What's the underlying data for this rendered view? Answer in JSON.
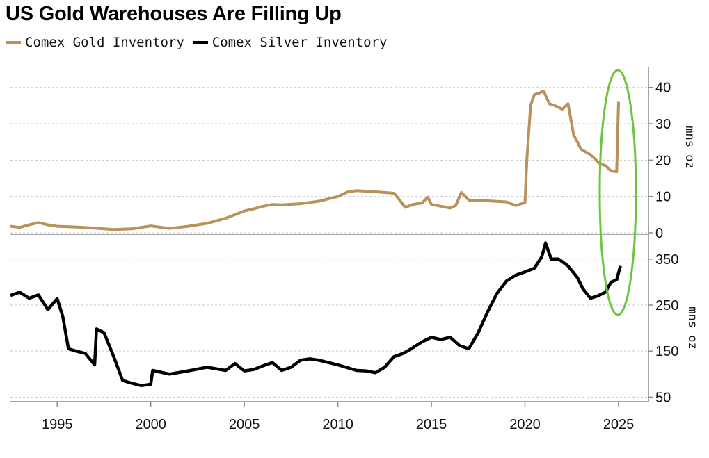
{
  "title": "US Gold Warehouses Are Filling Up",
  "legend": [
    {
      "label": "Comex Gold Inventory",
      "color": "#b8915b"
    },
    {
      "label": "Comex Silver Inventory",
      "color": "#000000"
    }
  ],
  "chart_data": [
    {
      "type": "line",
      "series": [
        {
          "name": "Comex Gold Inventory",
          "color": "#b8915b",
          "x": [
            1992.5,
            1993,
            1993.5,
            1994,
            1994.5,
            1995,
            1996,
            1997,
            1998,
            1999,
            2000,
            2001,
            2002,
            2003,
            2004,
            2005,
            2005.5,
            2006,
            2006.5,
            2007,
            2008,
            2009,
            2010,
            2010.5,
            2011,
            2012,
            2013,
            2013.3,
            2013.6,
            2014,
            2014.5,
            2014.8,
            2015,
            2015.5,
            2016,
            2016.3,
            2016.6,
            2017,
            2018,
            2019,
            2019.5,
            2020,
            2020.1,
            2020.3,
            2020.5,
            2020.8,
            2021,
            2021.3,
            2021.6,
            2022,
            2022.3,
            2022.6,
            2023,
            2023.5,
            2024,
            2024.3,
            2024.6,
            2024.9,
            2025
          ],
          "y": [
            1.8,
            1.5,
            2.2,
            2.8,
            2.2,
            1.8,
            1.6,
            1.3,
            0.9,
            1.1,
            1.9,
            1.2,
            1.8,
            2.6,
            4.0,
            6.0,
            6.6,
            7.3,
            7.8,
            7.7,
            8.0,
            8.7,
            10.0,
            11.2,
            11.6,
            11.3,
            10.9,
            9.0,
            7.0,
            7.8,
            8.2,
            9.8,
            7.8,
            7.3,
            6.8,
            7.5,
            11.1,
            9.0,
            8.8,
            8.5,
            7.5,
            8.3,
            20.0,
            35.0,
            38.0,
            38.5,
            39.0,
            35.5,
            35.0,
            34.0,
            35.5,
            27.0,
            23.0,
            21.5,
            19.0,
            18.5,
            17.0,
            16.8,
            36.0
          ]
        }
      ],
      "ylim": [
        0,
        43
      ],
      "yticks": [
        0,
        10,
        20,
        30,
        40
      ],
      "yunit": "mns oz",
      "yaxis_side": "right"
    },
    {
      "type": "line",
      "series": [
        {
          "name": "Comex Silver Inventory",
          "color": "#000000",
          "x": [
            1992.5,
            1993,
            1993.5,
            1994,
            1994.5,
            1995,
            1995.3,
            1995.6,
            1996,
            1996.5,
            1997,
            1997.1,
            1997.5,
            1998,
            1998.5,
            1999,
            1999.5,
            2000,
            2000.1,
            2001,
            2002,
            2003,
            2004,
            2004.5,
            2005,
            2005.5,
            2006,
            2006.5,
            2007,
            2007.5,
            2008,
            2008.5,
            2009,
            2010,
            2011,
            2011.5,
            2012,
            2012.5,
            2013,
            2013.5,
            2014,
            2014.5,
            2015,
            2015.5,
            2016,
            2016.5,
            2017,
            2017.5,
            2018,
            2018.5,
            2019,
            2019.5,
            2020,
            2020.5,
            2020.9,
            2021.1,
            2021.4,
            2021.8,
            2022.3,
            2022.8,
            2023.1,
            2023.5,
            2023.9,
            2024.3,
            2024.6,
            2024.9,
            2025.1
          ],
          "y": [
            271,
            278,
            265,
            272,
            240,
            264,
            225,
            155,
            150,
            145,
            120,
            198,
            190,
            140,
            86,
            80,
            75,
            78,
            108,
            100,
            107,
            115,
            108,
            123,
            107,
            110,
            118,
            125,
            108,
            115,
            130,
            133,
            130,
            120,
            108,
            107,
            103,
            115,
            138,
            145,
            157,
            170,
            180,
            175,
            180,
            162,
            155,
            190,
            235,
            275,
            302,
            315,
            322,
            330,
            355,
            385,
            350,
            350,
            335,
            310,
            285,
            265,
            270,
            278,
            300,
            305,
            335
          ]
        }
      ],
      "ylim": [
        40,
        395
      ],
      "yticks": [
        50,
        150,
        250,
        350
      ],
      "yunit": "mns oz",
      "yaxis_side": "right"
    }
  ],
  "xaxis": {
    "min": 1992.5,
    "max": 2026.6,
    "ticks": [
      1995,
      2000,
      2005,
      2010,
      2015,
      2020,
      2025
    ]
  },
  "annotation": {
    "shape": "ellipse",
    "color": "#6ec43f"
  }
}
